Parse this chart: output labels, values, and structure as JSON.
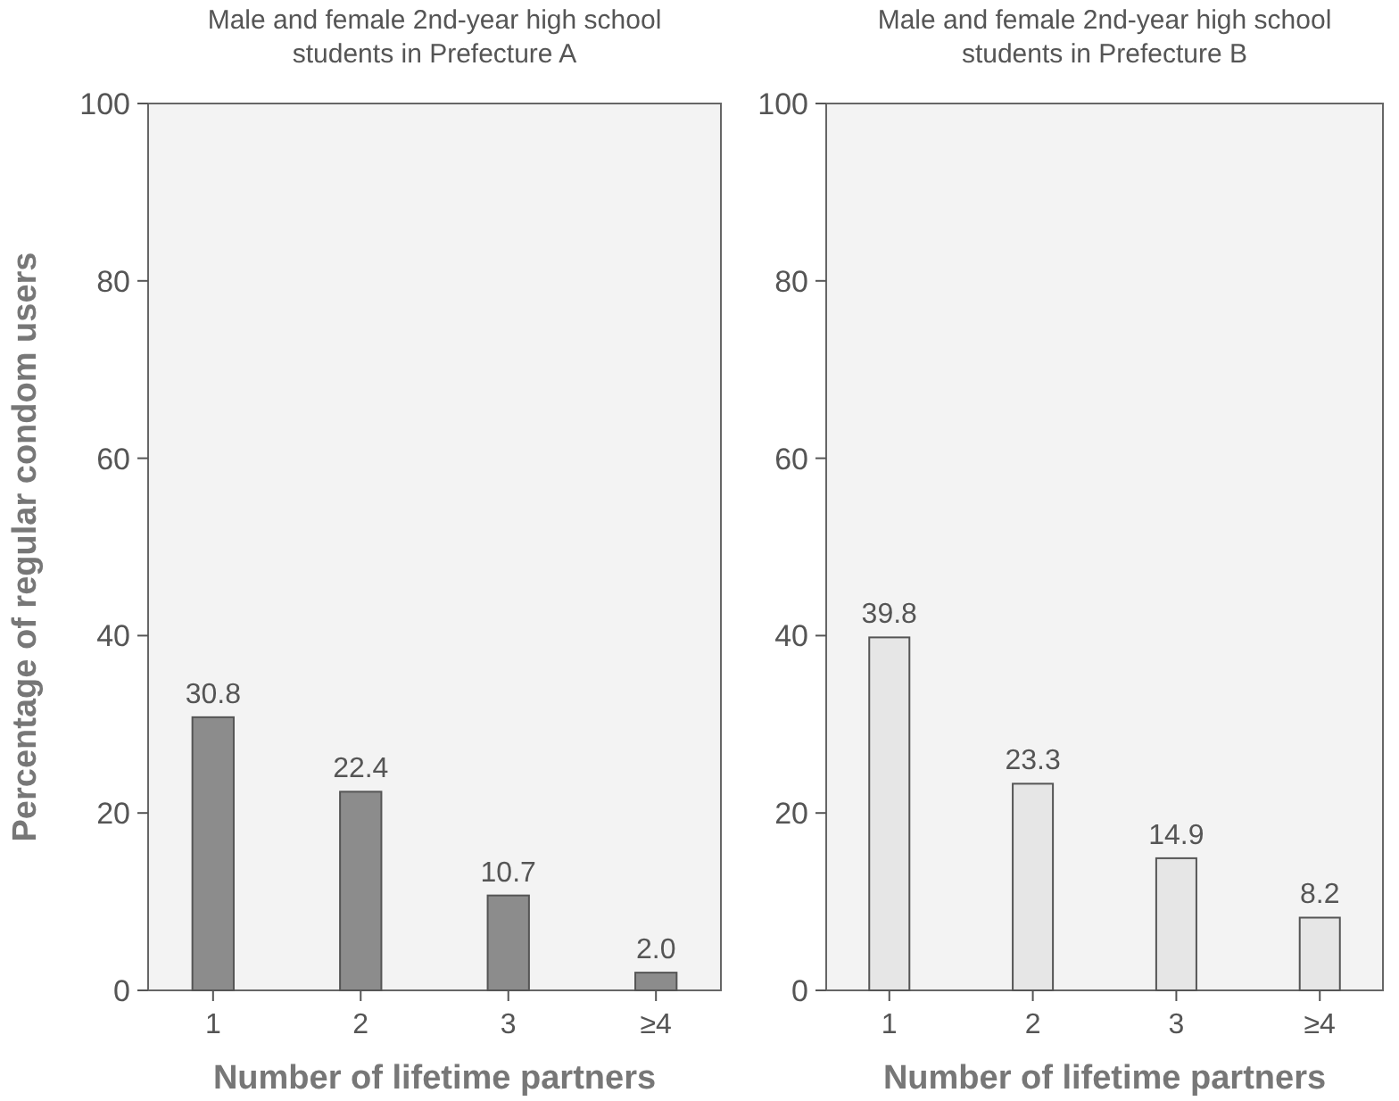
{
  "chart_data": [
    {
      "type": "bar",
      "title": "Male and female 2nd-year high school students in Prefecture A",
      "categories": [
        "1",
        "2",
        "3",
        "≥4"
      ],
      "values": [
        30.8,
        22.4,
        10.7,
        2.0
      ],
      "value_labels": [
        "30.8",
        "22.4",
        "10.7",
        "2.0"
      ],
      "color": "#8c8c8c",
      "ylim": [
        0,
        100
      ],
      "yticks": [
        0,
        20,
        40,
        60,
        80,
        100
      ],
      "xlabel": "Number of lifetime partners",
      "ylabel": "Percentage of regular condom users",
      "grid": false
    },
    {
      "type": "bar",
      "title": "Male and female 2nd-year high school students in Prefecture B",
      "categories": [
        "1",
        "2",
        "3",
        "≥4"
      ],
      "values": [
        39.8,
        23.3,
        14.9,
        8.2
      ],
      "value_labels": [
        "39.8",
        "23.3",
        "14.9",
        "8.2"
      ],
      "color": "#e6e6e6",
      "ylim": [
        0,
        100
      ],
      "yticks": [
        0,
        20,
        40,
        60,
        80,
        100
      ],
      "xlabel": "Number of lifetime partners",
      "grid": false
    }
  ]
}
